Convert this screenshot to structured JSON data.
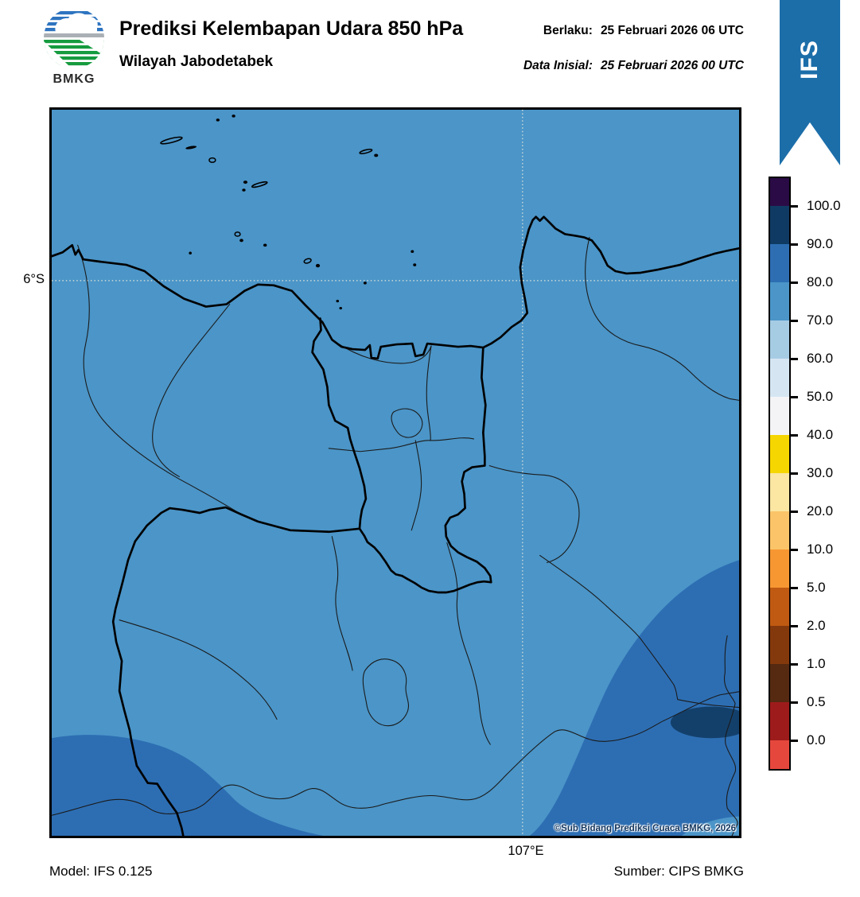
{
  "header": {
    "logo_text": "BMKG",
    "title": "Prediksi Kelembapan Udara 850 hPa",
    "subtitle": "Wilayah Jabodetabek",
    "valid_label": "Berlaku:",
    "valid_value": "25 Februari 2026 06 UTC",
    "initial_label": "Data Inisial:",
    "initial_value": "25 Februari 2026 00 UTC",
    "ribbon_label": "IFS"
  },
  "map": {
    "lat_label": "6°S",
    "lon_label": "107°E",
    "copyright": "©Sub Bidang Prediksi Cuaca BMKG, 2026",
    "colors": {
      "sea_background_70_80": "#4b95c8",
      "region_80_90": "#2d6eb3",
      "region_90_100": "#13406b",
      "gridline": "#e8e8da"
    },
    "regions": [
      {
        "name": "background",
        "humidity_range": "70-80"
      },
      {
        "name": "southwest-patch",
        "humidity_range": "80-90"
      },
      {
        "name": "southeast-patch",
        "humidity_range": "80-90"
      },
      {
        "name": "east-core-ellipse",
        "humidity_range": "90-100"
      },
      {
        "name": "corner-patch",
        "humidity_range": "70-80"
      }
    ]
  },
  "colorbar": {
    "values": [
      "100.0",
      "90.0",
      "80.0",
      "70.0",
      "60.0",
      "50.0",
      "40.0",
      "30.0",
      "20.0",
      "10.0",
      "5.0",
      "2.0",
      "1.0",
      "0.5",
      "0.0"
    ],
    "colors": [
      "#2a0b45",
      "#0f3a63",
      "#2d6eb3",
      "#4b95c8",
      "#a6cce4",
      "#d5e6f2",
      "#f4f4f6",
      "#f6d600",
      "#fbe6a2",
      "#fbc468",
      "#f79732",
      "#c05a12",
      "#84390c",
      "#552a11",
      "#9e1b1b",
      "#e6473c"
    ]
  },
  "footer": {
    "model": "Model: IFS 0.125",
    "source": "Sumber: CIPS BMKG"
  }
}
